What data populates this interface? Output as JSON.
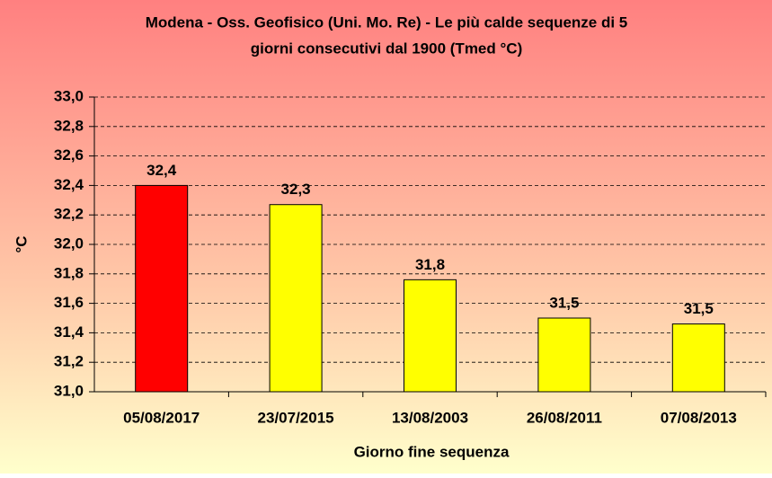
{
  "chart_data": {
    "type": "bar",
    "title": [
      "Modena - Oss. Geofisico (Uni. Mo. Re) - Le più calde sequenze di 5",
      "giorni consecutivi dal 1900 (Tmed °C)"
    ],
    "x_label": "Giorno fine sequenza",
    "y_label": "°C",
    "categories": [
      "05/08/2017",
      "23/07/2015",
      "13/08/2003",
      "26/08/2011",
      "07/08/2013"
    ],
    "values": [
      32.4,
      32.27,
      31.76,
      31.5,
      31.46
    ],
    "value_labels": [
      "32,4",
      "32,3",
      "31,8",
      "31,5",
      "31,5"
    ],
    "colors": [
      "#ff0000",
      "#ffff00",
      "#ffff00",
      "#ffff00",
      "#ffff00"
    ],
    "ylim": [
      31,
      33
    ],
    "yticks": [
      {
        "value": 31,
        "label": "31,0"
      },
      {
        "value": 31.2,
        "label": "31,2"
      },
      {
        "value": 31.4,
        "label": "31,4"
      },
      {
        "value": 31.6,
        "label": "31,6"
      },
      {
        "value": 31.8,
        "label": "31,8"
      },
      {
        "value": 32,
        "label": "32,0"
      },
      {
        "value": 32.2,
        "label": "32,2"
      },
      {
        "value": 32.4,
        "label": "32,4"
      },
      {
        "value": 32.6,
        "label": "32,6"
      },
      {
        "value": 32.8,
        "label": "32,8"
      },
      {
        "value": 33,
        "label": "33,0"
      }
    ],
    "grid": true
  }
}
